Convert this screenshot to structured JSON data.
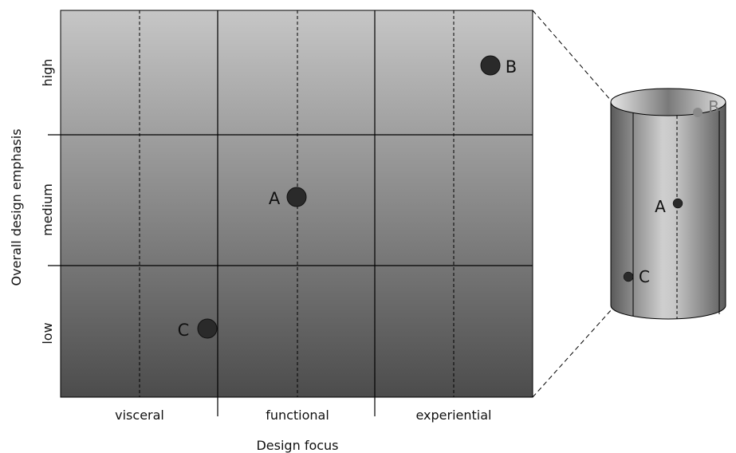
{
  "axes": {
    "x_title": "Design focus",
    "y_title": "Overall design emphasis",
    "columns": [
      "visceral",
      "functional",
      "experiential"
    ],
    "rows": [
      "high",
      "medium",
      "low"
    ]
  },
  "points": [
    {
      "label": "A",
      "column": "functional",
      "row": "medium"
    },
    {
      "label": "B",
      "column": "experiential",
      "row": "high"
    },
    {
      "label": "C",
      "column": "visceral",
      "row": "low"
    }
  ],
  "cylinder_points": [
    {
      "label": "B"
    },
    {
      "label": "A"
    },
    {
      "label": "C"
    }
  ],
  "colors": {
    "grid_top": "#c4c4c4",
    "grid_bottom": "#4e4e4e",
    "point_fill": "#2a2a2a",
    "line": "#000000",
    "faded_point": "#8a8a8a"
  }
}
